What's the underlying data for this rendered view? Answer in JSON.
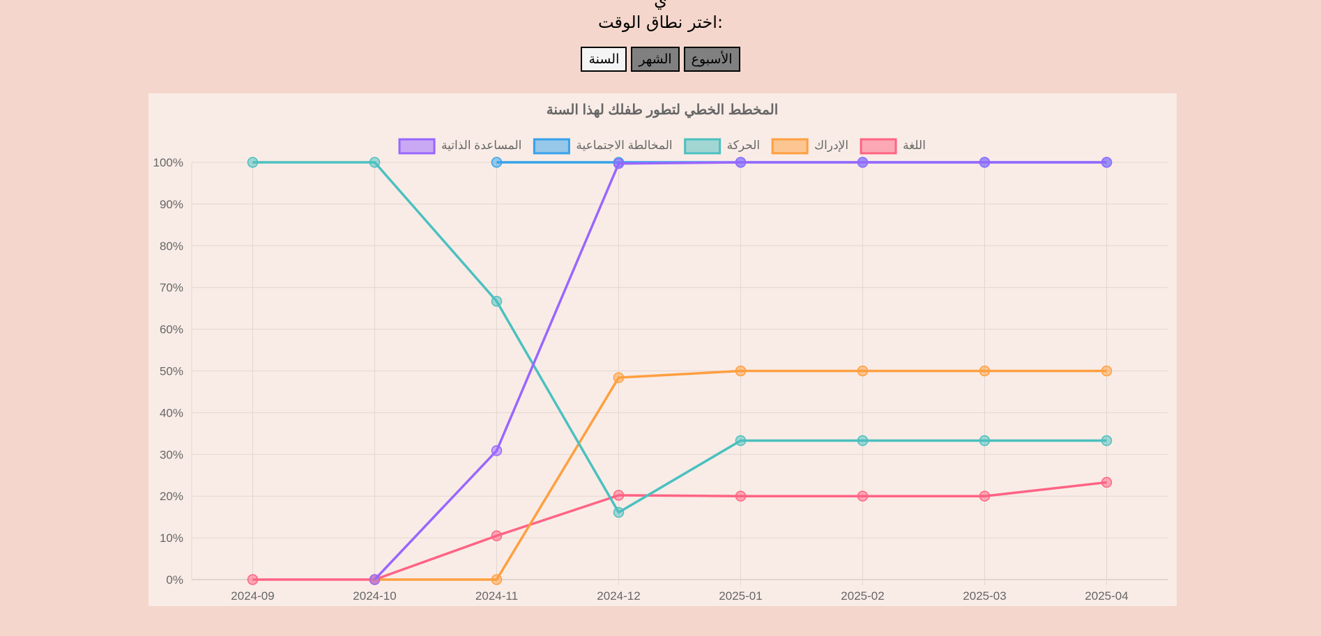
{
  "header": {
    "range_title": "اختر نطاق الوقت:"
  },
  "range_buttons": [
    {
      "label": "الأسبوع",
      "active": false
    },
    {
      "label": "الشهر",
      "active": false
    },
    {
      "label": "السنة",
      "active": true
    }
  ],
  "chart_data": {
    "type": "line",
    "title": "المخطط الخطي لتطور طفلك لهذا السنة",
    "xlabel": "",
    "ylabel": "",
    "ylim": [
      0,
      100
    ],
    "y_ticks": [
      "0%",
      "10%",
      "20%",
      "30%",
      "40%",
      "50%",
      "60%",
      "70%",
      "80%",
      "90%",
      "100%"
    ],
    "categories": [
      "2024-09",
      "2024-10",
      "2024-11",
      "2024-12",
      "2025-01",
      "2025-02",
      "2025-03",
      "2025-04"
    ],
    "grid": true,
    "legend_position": "top",
    "series": [
      {
        "name": "اللغة",
        "color": "#ff6384",
        "values": [
          0,
          0,
          10.5,
          20.2,
          20,
          20,
          20,
          23.3
        ]
      },
      {
        "name": "الإدراك",
        "color": "#ff9f40",
        "values": [
          null,
          0,
          0,
          48.4,
          50,
          50,
          50,
          50
        ]
      },
      {
        "name": "الحركة",
        "color": "#4bc0c0",
        "values": [
          100,
          100,
          66.7,
          16.1,
          33.3,
          33.3,
          33.3,
          33.3
        ]
      },
      {
        "name": "المخالطة الاجتماعية",
        "color": "#36a2eb",
        "values": [
          null,
          null,
          100,
          100,
          100,
          100,
          100,
          100
        ]
      },
      {
        "name": "المساعدة الذاتية",
        "color": "#9966ff",
        "values": [
          null,
          0,
          30.9,
          99.7,
          100,
          100,
          100,
          100
        ]
      }
    ]
  }
}
